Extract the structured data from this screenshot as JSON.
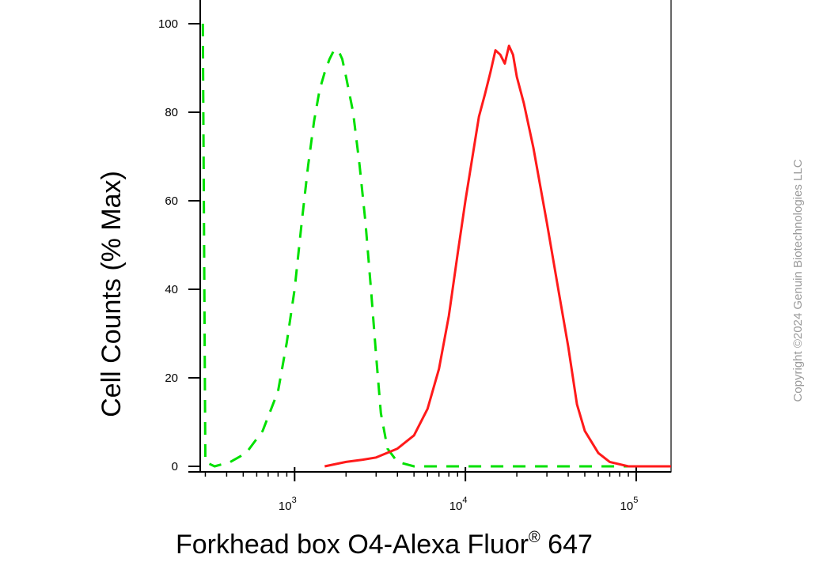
{
  "chart_data": {
    "type": "line",
    "title": "",
    "xlabel": "Forkhead box O4-Alexa Fluor",
    "xlabel_superscript": "®",
    "xlabel_suffix": " 647",
    "ylabel": "Cell Counts (% Max)",
    "x_scale": "log",
    "xlim": [
      280,
      160000
    ],
    "ylim": [
      0,
      105
    ],
    "x_ticks": [
      {
        "base": "10",
        "exp": "3",
        "value": 1000
      },
      {
        "base": "10",
        "exp": "4",
        "value": 10000
      },
      {
        "base": "10",
        "exp": "5",
        "value": 100000
      }
    ],
    "y_ticks": [
      "0",
      "20",
      "40",
      "60",
      "80",
      "100"
    ],
    "grid": false,
    "legend": "none",
    "series": [
      {
        "color": "#00e000",
        "style": "dashed",
        "points": [
          [
            290,
            100
          ],
          [
            300,
            1
          ],
          [
            340,
            0
          ],
          [
            420,
            1
          ],
          [
            520,
            3
          ],
          [
            650,
            8
          ],
          [
            800,
            17
          ],
          [
            900,
            28
          ],
          [
            1000,
            40
          ],
          [
            1100,
            55
          ],
          [
            1200,
            68
          ],
          [
            1300,
            78
          ],
          [
            1400,
            85
          ],
          [
            1500,
            89
          ],
          [
            1600,
            92
          ],
          [
            1700,
            94
          ],
          [
            1800,
            94
          ],
          [
            1900,
            92
          ],
          [
            2000,
            88
          ],
          [
            2200,
            80
          ],
          [
            2400,
            68
          ],
          [
            2600,
            55
          ],
          [
            2800,
            40
          ],
          [
            3000,
            25
          ],
          [
            3200,
            12
          ],
          [
            3500,
            4
          ],
          [
            4000,
            1
          ],
          [
            5000,
            0
          ],
          [
            160000,
            0
          ]
        ]
      },
      {
        "color": "#ff1a1a",
        "style": "solid",
        "points": [
          [
            1500,
            0
          ],
          [
            2000,
            1
          ],
          [
            2500,
            1.5
          ],
          [
            3000,
            2
          ],
          [
            4000,
            4
          ],
          [
            5000,
            7
          ],
          [
            6000,
            13
          ],
          [
            7000,
            22
          ],
          [
            8000,
            34
          ],
          [
            9000,
            48
          ],
          [
            10000,
            60
          ],
          [
            11000,
            70
          ],
          [
            12000,
            79
          ],
          [
            13000,
            84
          ],
          [
            14000,
            89
          ],
          [
            15000,
            94
          ],
          [
            16000,
            93
          ],
          [
            17000,
            91
          ],
          [
            18000,
            95
          ],
          [
            19000,
            93
          ],
          [
            20000,
            88
          ],
          [
            22000,
            82
          ],
          [
            25000,
            72
          ],
          [
            30000,
            55
          ],
          [
            35000,
            40
          ],
          [
            40000,
            27
          ],
          [
            45000,
            14
          ],
          [
            50000,
            8
          ],
          [
            60000,
            3
          ],
          [
            70000,
            1
          ],
          [
            90000,
            0
          ],
          [
            160000,
            0
          ]
        ]
      }
    ]
  },
  "watermark": "Copyright ©2024 Genuin Biotechnologies LLC"
}
